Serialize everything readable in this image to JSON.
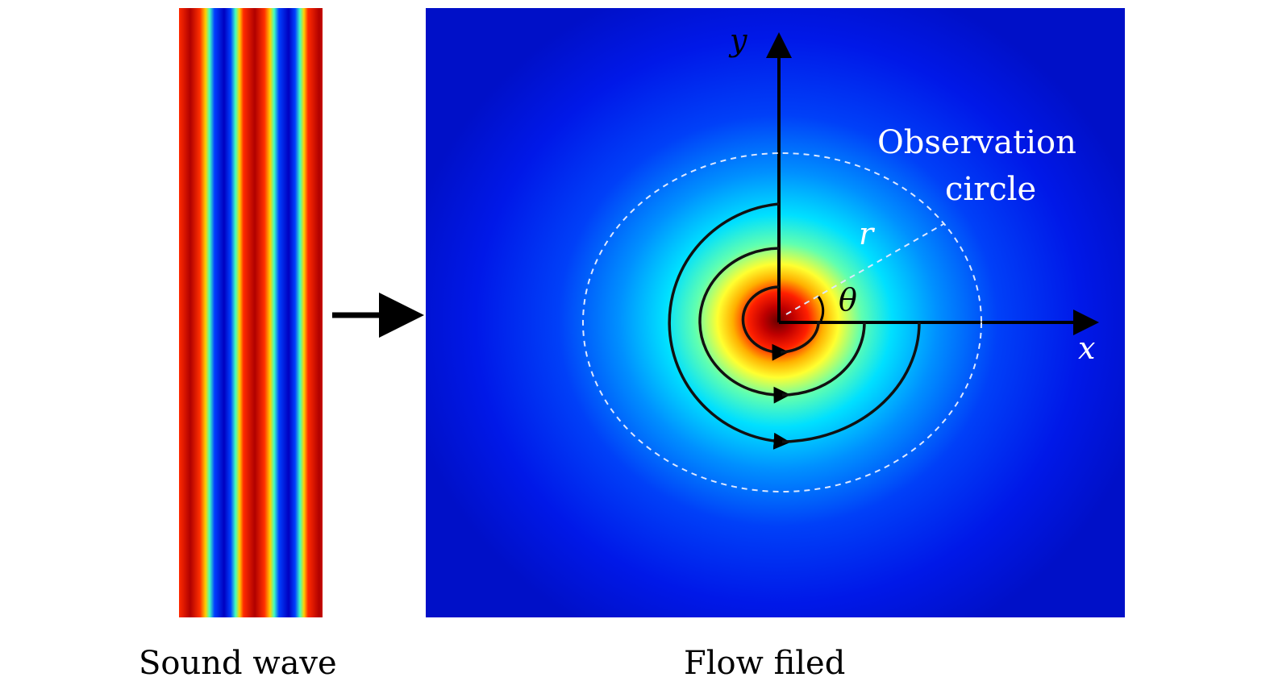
{
  "labels": {
    "sound_wave": "Sound wave",
    "flow_field": "Flow filed",
    "observation": "Observation",
    "circle": "circle",
    "x_axis": "x",
    "y_axis": "y",
    "radius": "r",
    "angle": "θ"
  },
  "colors": {
    "wave_red": "#b00000",
    "wave_blue": "#0000c0",
    "field_background": "#0018e8",
    "core": "#c00000"
  }
}
